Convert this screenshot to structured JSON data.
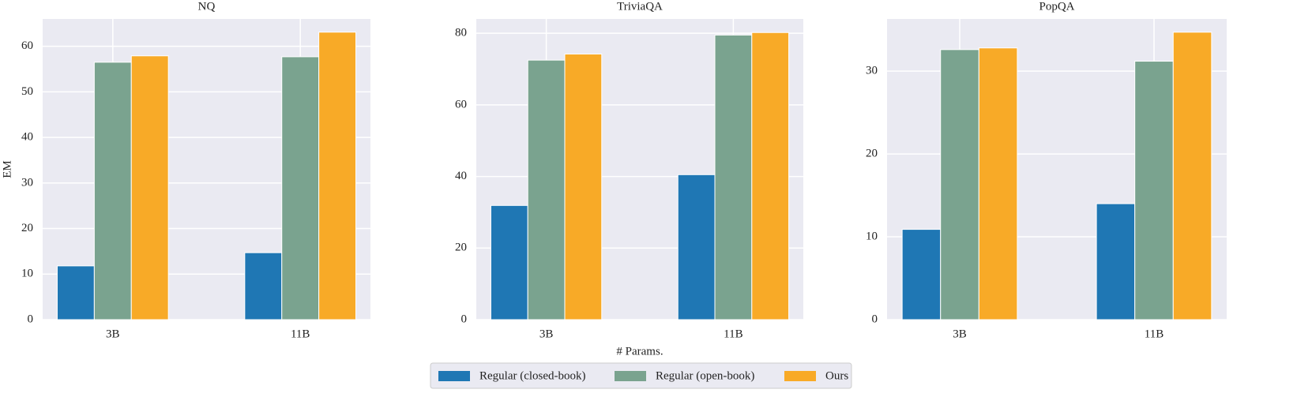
{
  "chart_data": [
    {
      "type": "bar",
      "title": "NQ",
      "y_label": "EM",
      "categories": [
        "3B",
        "11B"
      ],
      "series": [
        {
          "name": "Regular (closed-book)",
          "color": "#1f77b4",
          "values": [
            11.8,
            14.7
          ]
        },
        {
          "name": "Regular (open-book)",
          "color": "#7aa38f",
          "values": [
            56.5,
            57.7
          ]
        },
        {
          "name": "Ours",
          "color": "#f8aa27",
          "values": [
            57.9,
            63.1
          ]
        }
      ],
      "ylim": [
        0,
        66
      ],
      "yticks": [
        0,
        10,
        20,
        30,
        40,
        50,
        60
      ],
      "grid": true
    },
    {
      "type": "bar",
      "title": "TriviaQA",
      "x_label": "# Params.",
      "categories": [
        "3B",
        "11B"
      ],
      "series": [
        {
          "name": "Regular (closed-book)",
          "color": "#1f77b4",
          "values": [
            31.9,
            40.5
          ]
        },
        {
          "name": "Regular (open-book)",
          "color": "#7aa38f",
          "values": [
            72.5,
            79.5
          ]
        },
        {
          "name": "Ours",
          "color": "#f8aa27",
          "values": [
            74.2,
            80.2
          ]
        }
      ],
      "ylim": [
        0,
        84
      ],
      "yticks": [
        0,
        20,
        40,
        60,
        80
      ],
      "grid": true
    },
    {
      "type": "bar",
      "title": "PopQA",
      "categories": [
        "3B",
        "11B"
      ],
      "series": [
        {
          "name": "Regular (closed-book)",
          "color": "#1f77b4",
          "values": [
            10.9,
            14.0
          ]
        },
        {
          "name": "Regular (open-book)",
          "color": "#7aa38f",
          "values": [
            32.6,
            31.2
          ]
        },
        {
          "name": "Ours",
          "color": "#f8aa27",
          "values": [
            32.8,
            34.7
          ]
        }
      ],
      "ylim": [
        0,
        36.3
      ],
      "yticks": [
        0,
        10,
        20,
        30
      ],
      "grid": true
    }
  ]
}
